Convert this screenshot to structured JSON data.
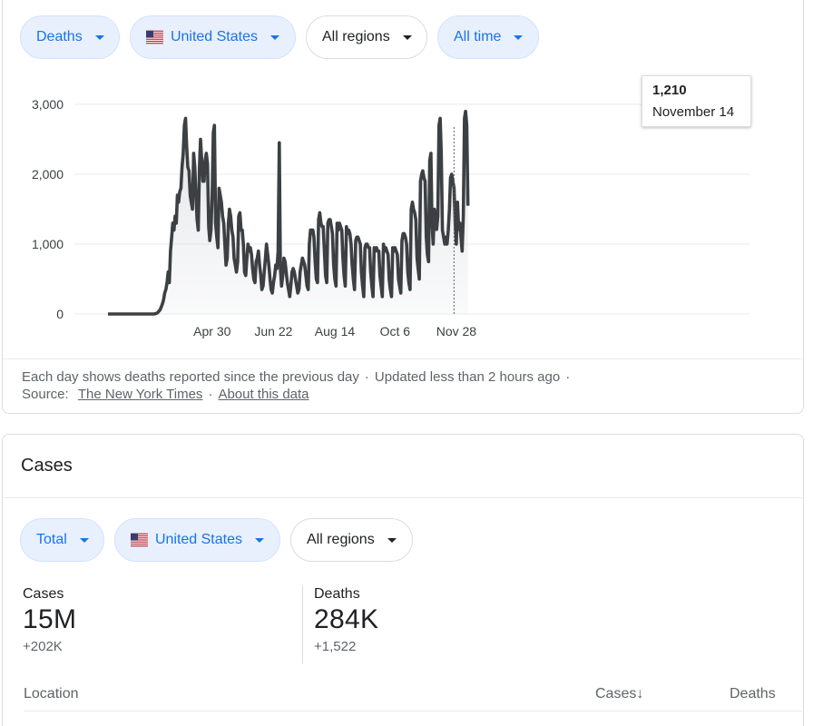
{
  "top_filters": {
    "metric": "Deaths",
    "country": "United States",
    "region": "All regions",
    "period": "All time"
  },
  "chart_data": {
    "type": "area",
    "series_name": "Deaths",
    "y_ticks": [
      "0",
      "1,000",
      "2,000",
      "3,000"
    ],
    "ylim": [
      0,
      3000
    ],
    "x_ticks": [
      "Apr 30",
      "Jun 22",
      "Aug 14",
      "Oct 6",
      "Nov 28"
    ],
    "x_tick_days": [
      90,
      143,
      196,
      248,
      301
    ],
    "start_date": "2020-01-21",
    "tooltip": {
      "value": "1,210",
      "date": "November 14",
      "day": 299
    },
    "line_color": "#3c4043",
    "values": [
      0,
      0,
      0,
      0,
      0,
      0,
      0,
      0,
      0,
      0,
      0,
      0,
      0,
      0,
      0,
      0,
      0,
      0,
      0,
      0,
      0,
      0,
      0,
      0,
      0,
      0,
      0,
      0,
      0,
      0,
      0,
      0,
      0,
      0,
      0,
      0,
      0,
      0,
      0,
      0,
      0,
      5,
      10,
      20,
      40,
      60,
      100,
      140,
      200,
      300,
      350,
      450,
      600,
      450,
      900,
      1100,
      1300,
      1200,
      1400,
      1300,
      1700,
      1600,
      1750,
      1800,
      2100,
      2300,
      2700,
      2800,
      2400,
      2100,
      2050,
      1700,
      1600,
      1500,
      2300,
      2100,
      1700,
      1350,
      1200,
      2100,
      2500,
      2200,
      1900,
      1900,
      2200,
      2300,
      2150,
      1250,
      1050,
      1200,
      1700,
      2600,
      2700,
      1300,
      1100,
      950,
      1800,
      1700,
      1600,
      1400,
      1300,
      1000,
      700,
      800,
      1300,
      1500,
      1400,
      1200,
      1100,
      800,
      700,
      600,
      750,
      1400,
      1450,
      1200,
      1200,
      1000,
      600,
      550,
      800,
      1000,
      900,
      950,
      850,
      650,
      500,
      450,
      750,
      800,
      900,
      700,
      550,
      350,
      400,
      600,
      800,
      1000,
      850,
      700,
      500,
      350,
      300,
      450,
      550,
      700,
      650,
      900,
      2450,
      650,
      400,
      550,
      800,
      750,
      600,
      450,
      350,
      250,
      400,
      600,
      650,
      600,
      500,
      400,
      300,
      350,
      600,
      700,
      800,
      750,
      700,
      550,
      400,
      350,
      1000,
      1200,
      1200,
      1200,
      1100,
      750,
      500,
      450,
      1350,
      1450,
      1300,
      1250,
      1250,
      900,
      550,
      450,
      1300,
      1350,
      1350,
      1250,
      1150,
      700,
      500,
      400,
      1300,
      1200,
      1300,
      1250,
      1200,
      800,
      550,
      400,
      1250,
      1150,
      1200,
      1150,
      1000,
      700,
      500,
      350,
      1050,
      1100,
      1100,
      1050,
      1000,
      600,
      400,
      250,
      950,
      1000,
      1000,
      950,
      950,
      600,
      400,
      250,
      950,
      900,
      950,
      900,
      900,
      550,
      400,
      250,
      1000,
      900,
      950,
      900,
      850,
      500,
      350,
      250,
      950,
      900,
      950,
      900,
      850,
      500,
      400,
      300,
      1050,
      1150,
      1150,
      1100,
      1000,
      600,
      450,
      350,
      1500,
      1600,
      1500,
      1450,
      1350,
      800,
      650,
      500,
      1900,
      2000,
      2050,
      1950,
      1900,
      1100,
      850,
      750,
      2200,
      2300,
      1300,
      1000,
      1500,
      1400,
      1210,
      1400,
      2700,
      2800,
      2300,
      1200,
      1100,
      1000,
      1100,
      1000,
      1200,
      1500,
      1950,
      2000,
      1900,
      1800,
      1300,
      1000,
      1600,
      1210,
      1300,
      1100,
      900,
      1400,
      2800,
      2900,
      2700,
      1550
    ]
  },
  "footer": {
    "note": "Each day shows deaths reported since the previous day",
    "updated": "Updated less than 2 hours ago",
    "source_label": "Source:",
    "source_link": "The New York Times",
    "about_link": "About this data"
  },
  "cases_section": {
    "title": "Cases",
    "filters": {
      "type": "Total",
      "country": "United States",
      "region": "All regions"
    },
    "stats": {
      "cases_label": "Cases",
      "cases_value": "15M",
      "cases_delta": "+202K",
      "deaths_label": "Deaths",
      "deaths_value": "284K",
      "deaths_delta": "+1,522"
    },
    "table_headers": {
      "location": "Location",
      "cases": "Cases↓",
      "deaths": "Deaths"
    }
  }
}
